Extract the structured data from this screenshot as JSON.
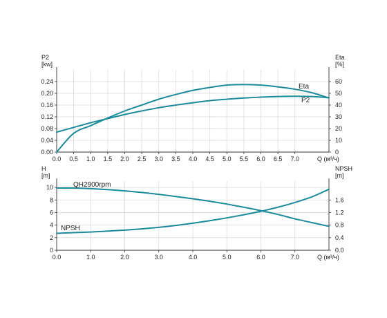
{
  "chart_data": [
    {
      "type": "line",
      "x_label": "Q (м³/ч)",
      "x_ticks": [
        "0.0",
        "0.5",
        "1.0",
        "1.5",
        "2.0",
        "2.5",
        "3.0",
        "3.5",
        "4.0",
        "4.5",
        "5.0",
        "5.5",
        "6.0",
        "6.5",
        "7.0"
      ],
      "xlim": [
        0,
        8
      ],
      "y_left_label_lines": [
        "P2",
        "[kw]"
      ],
      "y_left_ticks": [
        "0.00",
        "0.04",
        "0.08",
        "0.12",
        "0.16",
        "0.20",
        "0.24"
      ],
      "ylim_left": [
        0,
        0.28
      ],
      "y_right_label_lines": [
        "Eta",
        "[%]"
      ],
      "y_right_ticks": [
        "0",
        "10",
        "20",
        "30",
        "40",
        "50",
        "60"
      ],
      "ylim_right": [
        0,
        70
      ],
      "grid": true,
      "color": "#1b8a9a",
      "series": [
        {
          "name": "Eta",
          "axis": "right",
          "x": [
            0.0,
            0.5,
            1.0,
            1.5,
            2.0,
            2.5,
            3.0,
            3.5,
            4.0,
            4.5,
            5.0,
            5.5,
            6.0,
            6.5,
            7.0,
            7.5,
            8.0
          ],
          "values": [
            0,
            16,
            22.5,
            29,
            35,
            40,
            45,
            49,
            52.5,
            55,
            57,
            57.5,
            57,
            55.5,
            53.5,
            50.5,
            46
          ]
        },
        {
          "name": "P2",
          "axis": "left",
          "x": [
            0.0,
            0.5,
            1.0,
            1.5,
            2.0,
            2.5,
            3.0,
            3.5,
            4.0,
            4.5,
            5.0,
            5.5,
            6.0,
            6.5,
            7.0,
            7.5,
            8.0
          ],
          "values": [
            0.068,
            0.084,
            0.1,
            0.114,
            0.128,
            0.14,
            0.151,
            0.16,
            0.168,
            0.175,
            0.18,
            0.184,
            0.187,
            0.189,
            0.19,
            0.189,
            0.185
          ]
        }
      ]
    },
    {
      "type": "line",
      "x_label": "Q (м³/ч)",
      "x_ticks": [
        "0.0",
        "1.0",
        "2.0",
        "3.0",
        "4.0",
        "5.0",
        "6.0",
        "7.0"
      ],
      "xlim": [
        0,
        8
      ],
      "y_left_label_lines": [
        "H",
        "[m]"
      ],
      "y_left_ticks": [
        "0",
        "2",
        "4",
        "6",
        "8",
        "10"
      ],
      "ylim_left": [
        0,
        11
      ],
      "y_right_label_lines": [
        "NPSH",
        "[m]"
      ],
      "y_right_ticks": [
        "0.0",
        "0.4",
        "0.8",
        "1.2",
        "1.6"
      ],
      "ylim_right": [
        0,
        2.2
      ],
      "grid": true,
      "color": "#1b8a9a",
      "series": [
        {
          "name": "QH2900rpm",
          "axis": "left",
          "x": [
            0.0,
            0.5,
            1.0,
            1.5,
            2.0,
            2.5,
            3.0,
            3.5,
            4.0,
            4.5,
            5.0,
            5.5,
            6.0,
            6.5,
            7.0,
            7.5,
            8.0
          ],
          "values": [
            9.9,
            9.9,
            9.8,
            9.65,
            9.45,
            9.2,
            8.9,
            8.55,
            8.2,
            7.8,
            7.35,
            6.85,
            6.3,
            5.7,
            5.0,
            4.4,
            3.8
          ]
        },
        {
          "name": "NPSH",
          "axis": "right",
          "x": [
            0.0,
            0.5,
            1.0,
            1.5,
            2.0,
            2.5,
            3.0,
            3.5,
            4.0,
            4.5,
            5.0,
            5.5,
            6.0,
            6.5,
            7.0,
            7.5,
            8.0
          ],
          "values": [
            0.54,
            0.56,
            0.58,
            0.61,
            0.64,
            0.68,
            0.73,
            0.79,
            0.86,
            0.94,
            1.03,
            1.13,
            1.24,
            1.37,
            1.52,
            1.7,
            1.94
          ]
        }
      ]
    }
  ]
}
